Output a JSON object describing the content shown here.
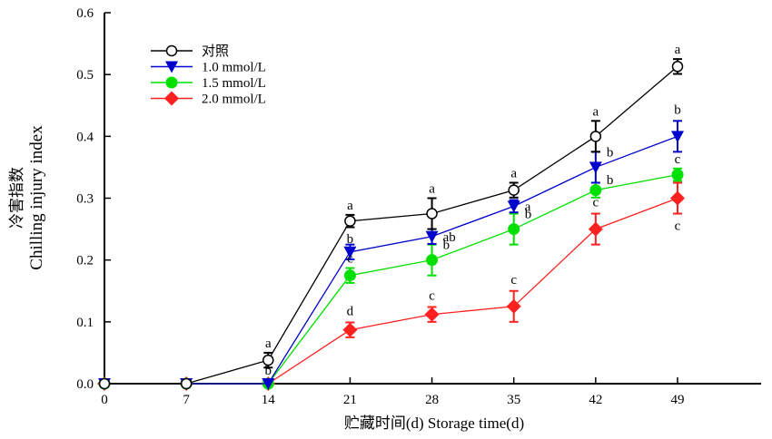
{
  "chart_data": {
    "type": "line",
    "title": "",
    "xlabel": "贮藏时间(d)  Storage time(d)",
    "ylabel_cn": "冷害指数",
    "ylabel_en": "Chilling injury index",
    "x": [
      0,
      7,
      14,
      21,
      28,
      35,
      42,
      49
    ],
    "x_ticks": [
      "0",
      "7",
      "14",
      "21",
      "28",
      "35",
      "42",
      "49"
    ],
    "y_ticks": [
      "0.0",
      "0.1",
      "0.2",
      "0.3",
      "0.4",
      "0.5",
      "0.6"
    ],
    "xlim": [
      0,
      56
    ],
    "ylim": [
      0,
      0.6
    ],
    "grid": false,
    "legend_position": "top-left",
    "series": [
      {
        "name": "对照",
        "color": "#000000",
        "marker": "open-circle",
        "values": [
          0,
          0,
          0.038,
          0.263,
          0.275,
          0.313,
          0.4,
          0.513
        ],
        "errors": [
          0,
          0,
          0.012,
          0.01,
          0.025,
          0.012,
          0.025,
          0.012
        ],
        "labels": [
          "",
          "",
          "a",
          "a",
          "a",
          "a",
          "a",
          "a"
        ]
      },
      {
        "name": "1.0 mmol/L",
        "color": "#0000cc",
        "marker": "down-triangle",
        "values": [
          0,
          0,
          0,
          0.213,
          0.238,
          0.287,
          0.35,
          0.4
        ],
        "errors": [
          0,
          0,
          0,
          0.012,
          0.012,
          0.01,
          0.025,
          0.025
        ],
        "labels": [
          "",
          "",
          "b",
          "b",
          "ab",
          "a",
          "b",
          "b"
        ]
      },
      {
        "name": "1.5 mmol/L",
        "color": "#00e000",
        "marker": "filled-circle",
        "values": [
          0,
          0,
          0,
          0.175,
          0.2,
          0.25,
          0.313,
          0.338
        ],
        "errors": [
          0,
          0,
          0,
          0.012,
          0.025,
          0.025,
          0.012,
          0.01
        ],
        "labels": [
          "",
          "",
          "",
          "c",
          "b",
          "b",
          "b",
          "c"
        ]
      },
      {
        "name": "2.0 mmol/L",
        "color": "#ff2020",
        "marker": "diamond",
        "values": [
          0,
          0,
          0,
          0.087,
          0.112,
          0.125,
          0.25,
          0.3
        ],
        "errors": [
          0,
          0,
          0,
          0.012,
          0.012,
          0.025,
          0.025,
          0.025
        ],
        "labels": [
          "",
          "",
          "",
          "d",
          "c",
          "c",
          "c",
          "c"
        ]
      }
    ]
  }
}
